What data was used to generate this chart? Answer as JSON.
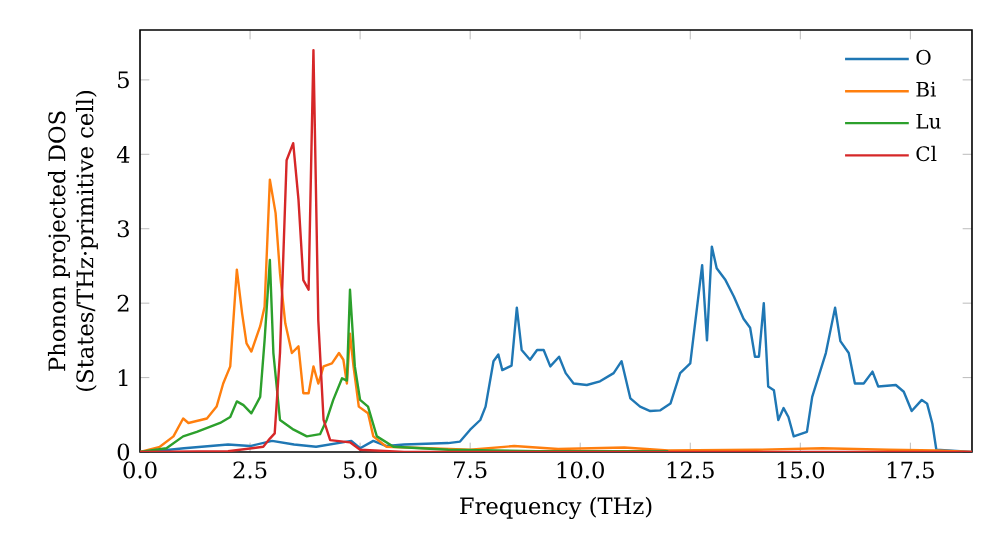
{
  "chart_data": {
    "type": "line",
    "xlabel": "Frequency (THz)",
    "ylabel": "Phonon projected DOS\n(States/THz·primitive cell)",
    "xlim": [
      0,
      18.9
    ],
    "ylim": [
      0,
      5.67
    ],
    "xticks": [
      {
        "value": 0,
        "label": "0.0"
      },
      {
        "value": 2.5,
        "label": "2.5"
      },
      {
        "value": 5,
        "label": "5.0"
      },
      {
        "value": 7.5,
        "label": "7.5"
      },
      {
        "value": 10,
        "label": "10.0"
      },
      {
        "value": 12.5,
        "label": "12.5"
      },
      {
        "value": 15,
        "label": "15.0"
      },
      {
        "value": 17.5,
        "label": "17.5"
      }
    ],
    "yticks": [
      0,
      1,
      2,
      3,
      4,
      5
    ],
    "grid": false,
    "legend": "top right",
    "marker": "none",
    "line_style": "solid",
    "series": [
      {
        "name": "O",
        "color": "#1f77b4",
        "x": [
          0,
          0.5,
          1,
          2,
          2.5,
          3,
          3.5,
          4,
          4.8,
          5,
          5.3,
          5.6,
          6,
          7,
          7.27,
          7.5,
          7.73,
          7.85,
          8.03,
          8.14,
          8.23,
          8.44,
          8.56,
          8.67,
          8.86,
          9.02,
          9.17,
          9.32,
          9.52,
          9.67,
          9.85,
          10.15,
          10.45,
          10.76,
          10.94,
          11.14,
          11.36,
          11.59,
          11.82,
          12.05,
          12.27,
          12.5,
          12.77,
          12.88,
          12.99,
          13.1,
          13.3,
          13.49,
          13.71,
          13.86,
          13.97,
          14.06,
          14.17,
          14.27,
          14.4,
          14.5,
          14.62,
          14.73,
          14.85,
          15.15,
          15.27,
          15.58,
          15.79,
          15.91,
          16.1,
          16.24,
          16.44,
          16.64,
          16.77,
          17.17,
          17.35,
          17.53,
          17.76,
          17.88,
          18.0,
          18.09,
          18.9
        ],
        "values": [
          0,
          0.02,
          0.05,
          0.1,
          0.08,
          0.15,
          0.1,
          0.07,
          0.15,
          0.05,
          0.15,
          0.08,
          0.1,
          0.12,
          0.14,
          0.3,
          0.43,
          0.61,
          1.22,
          1.31,
          1.1,
          1.16,
          1.94,
          1.37,
          1.24,
          1.37,
          1.37,
          1.15,
          1.28,
          1.06,
          0.92,
          0.9,
          0.95,
          1.06,
          1.22,
          0.72,
          0.61,
          0.55,
          0.56,
          0.65,
          1.06,
          1.19,
          2.51,
          1.5,
          2.76,
          2.47,
          2.31,
          2.09,
          1.79,
          1.67,
          1.28,
          1.28,
          2.0,
          0.88,
          0.83,
          0.43,
          0.59,
          0.47,
          0.21,
          0.27,
          0.74,
          1.33,
          1.94,
          1.49,
          1.33,
          0.92,
          0.92,
          1.08,
          0.88,
          0.9,
          0.81,
          0.55,
          0.7,
          0.65,
          0.38,
          0.03,
          0
        ]
      },
      {
        "name": "Bi",
        "color": "#ff7f0e",
        "x": [
          0,
          0.45,
          0.76,
          0.98,
          1.1,
          1.52,
          1.74,
          1.89,
          2.05,
          2.2,
          2.32,
          2.42,
          2.53,
          2.73,
          2.83,
          2.95,
          3.08,
          3.18,
          3.3,
          3.45,
          3.6,
          3.71,
          3.83,
          3.94,
          4.05,
          4.17,
          4.36,
          4.52,
          4.62,
          4.7,
          4.77,
          4.85,
          4.97,
          5.18,
          5.3,
          5.6,
          7.5,
          8.5,
          9.5,
          11,
          12,
          14,
          15.5,
          17,
          18.1,
          18.9
        ],
        "values": [
          0,
          0.07,
          0.21,
          0.45,
          0.39,
          0.45,
          0.61,
          0.92,
          1.15,
          2.45,
          1.86,
          1.46,
          1.35,
          1.69,
          1.95,
          3.66,
          3.21,
          2.4,
          1.73,
          1.33,
          1.42,
          0.79,
          0.79,
          1.15,
          0.92,
          1.15,
          1.19,
          1.33,
          1.24,
          0.92,
          1.59,
          1.15,
          0.61,
          0.52,
          0.21,
          0.07,
          0.03,
          0.08,
          0.04,
          0.06,
          0.02,
          0.03,
          0.05,
          0.03,
          0.02,
          0
        ]
      },
      {
        "name": "Lu",
        "color": "#2ca02c",
        "x": [
          0,
          0.6,
          0.98,
          1.29,
          1.82,
          2.05,
          2.2,
          2.35,
          2.53,
          2.73,
          2.83,
          2.95,
          3.03,
          3.18,
          3.49,
          3.79,
          4.09,
          4.24,
          4.39,
          4.59,
          4.7,
          4.77,
          4.88,
          5.0,
          5.18,
          5.38,
          5.76,
          7,
          9,
          12
        ],
        "values": [
          0,
          0.05,
          0.21,
          0.27,
          0.39,
          0.47,
          0.68,
          0.63,
          0.52,
          0.74,
          1.5,
          2.58,
          1.33,
          0.43,
          0.3,
          0.21,
          0.24,
          0.43,
          0.7,
          0.99,
          0.96,
          2.18,
          1.15,
          0.7,
          0.61,
          0.21,
          0.07,
          0.03,
          0.01,
          0.01
        ]
      },
      {
        "name": "Cl",
        "color": "#d62728",
        "x": [
          0,
          2,
          2.8,
          2.95,
          3.06,
          3.18,
          3.33,
          3.48,
          3.6,
          3.71,
          3.83,
          3.94,
          4.05,
          4.17,
          4.32,
          4.77,
          5.0,
          6,
          18.9
        ],
        "values": [
          0,
          0.01,
          0.07,
          0.18,
          0.25,
          1.33,
          3.92,
          4.15,
          3.39,
          2.31,
          2.18,
          5.4,
          1.77,
          0.43,
          0.16,
          0.13,
          0.03,
          0,
          0
        ]
      }
    ]
  }
}
